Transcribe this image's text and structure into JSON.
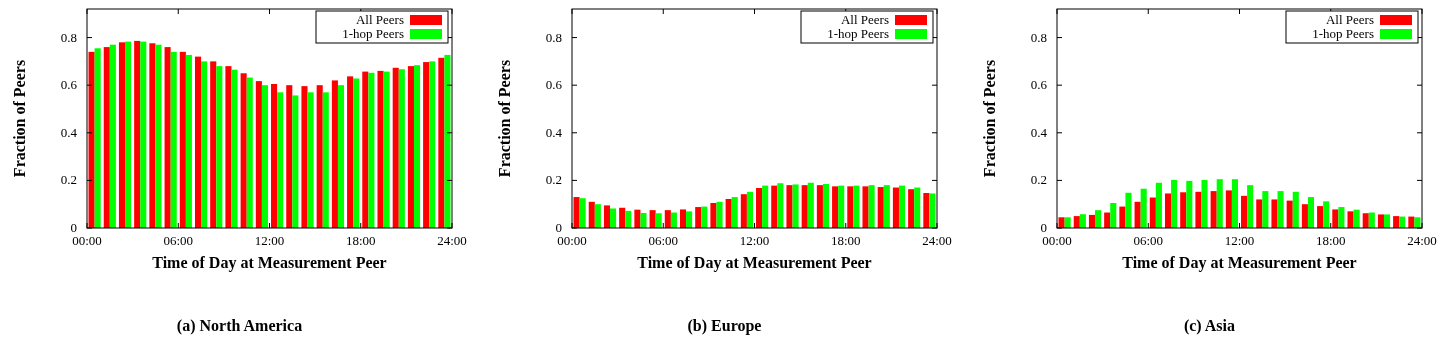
{
  "chart_data": [
    {
      "type": "bar",
      "title": "(a) North America",
      "xlabel": "Time of Day at Measurement Peer",
      "ylabel": "Fraction of Peers",
      "x": [
        0.5,
        1.5,
        2.5,
        3.5,
        4.5,
        5.5,
        6.5,
        7.5,
        8.5,
        9.5,
        10.5,
        11.5,
        12.5,
        13.5,
        14.5,
        15.5,
        16.5,
        17.5,
        18.5,
        19.5,
        20.5,
        21.5,
        22.5,
        23.5
      ],
      "xlim": [
        0,
        24
      ],
      "xticks": [
        {
          "value": 0,
          "label": "00:00"
        },
        {
          "value": 6,
          "label": "06:00"
        },
        {
          "value": 12,
          "label": "12:00"
        },
        {
          "value": 18,
          "label": "18:00"
        },
        {
          "value": 24,
          "label": "24:00"
        }
      ],
      "ylim": [
        0,
        0.92
      ],
      "yticks": [
        0,
        0.2,
        0.4,
        0.6,
        0.8
      ],
      "legend": "top right",
      "grid": false,
      "series": [
        {
          "name": "All Peers",
          "color": "#ff0000",
          "values": [
            0.74,
            0.76,
            0.78,
            0.786,
            0.776,
            0.76,
            0.74,
            0.72,
            0.7,
            0.68,
            0.65,
            0.617,
            0.605,
            0.6,
            0.596,
            0.6,
            0.62,
            0.637,
            0.657,
            0.66,
            0.673,
            0.68,
            0.697,
            0.715
          ]
        },
        {
          "name": "1-hop Peers",
          "color": "#00ff00",
          "values": [
            0.755,
            0.77,
            0.783,
            0.783,
            0.77,
            0.74,
            0.727,
            0.7,
            0.68,
            0.665,
            0.632,
            0.6,
            0.57,
            0.557,
            0.57,
            0.57,
            0.6,
            0.628,
            0.652,
            0.657,
            0.667,
            0.684,
            0.7,
            0.727
          ]
        }
      ]
    },
    {
      "type": "bar",
      "title": "(b) Europe",
      "xlabel": "Time of Day at Measurement Peer",
      "ylabel": "Fraction of Peers",
      "x": [
        0.5,
        1.5,
        2.5,
        3.5,
        4.5,
        5.5,
        6.5,
        7.5,
        8.5,
        9.5,
        10.5,
        11.5,
        12.5,
        13.5,
        14.5,
        15.5,
        16.5,
        17.5,
        18.5,
        19.5,
        20.5,
        21.5,
        22.5,
        23.5
      ],
      "xlim": [
        0,
        24
      ],
      "xticks": [
        {
          "value": 0,
          "label": "00:00"
        },
        {
          "value": 6,
          "label": "06:00"
        },
        {
          "value": 12,
          "label": "12:00"
        },
        {
          "value": 18,
          "label": "18:00"
        },
        {
          "value": 24,
          "label": "24:00"
        }
      ],
      "ylim": [
        0,
        0.92
      ],
      "yticks": [
        0,
        0.2,
        0.4,
        0.6,
        0.8
      ],
      "legend": "top right",
      "grid": false,
      "series": [
        {
          "name": "All Peers",
          "color": "#ff0000",
          "values": [
            0.13,
            0.11,
            0.095,
            0.085,
            0.077,
            0.075,
            0.075,
            0.078,
            0.088,
            0.105,
            0.122,
            0.142,
            0.168,
            0.178,
            0.18,
            0.18,
            0.18,
            0.175,
            0.175,
            0.175,
            0.172,
            0.17,
            0.163,
            0.147
          ]
        },
        {
          "name": "1-hop Peers",
          "color": "#00ff00",
          "values": [
            0.125,
            0.1,
            0.082,
            0.072,
            0.063,
            0.062,
            0.065,
            0.07,
            0.09,
            0.11,
            0.13,
            0.152,
            0.178,
            0.188,
            0.183,
            0.19,
            0.185,
            0.178,
            0.178,
            0.18,
            0.18,
            0.178,
            0.17,
            0.145
          ]
        }
      ]
    },
    {
      "type": "bar",
      "title": "(c) Asia",
      "xlabel": "Time of Day at Measurement Peer",
      "ylabel": "Fraction of Peers",
      "x": [
        0.5,
        1.5,
        2.5,
        3.5,
        4.5,
        5.5,
        6.5,
        7.5,
        8.5,
        9.5,
        10.5,
        11.5,
        12.5,
        13.5,
        14.5,
        15.5,
        16.5,
        17.5,
        18.5,
        19.5,
        20.5,
        21.5,
        22.5,
        23.5
      ],
      "xlim": [
        0,
        24
      ],
      "xticks": [
        {
          "value": 0,
          "label": "00:00"
        },
        {
          "value": 6,
          "label": "06:00"
        },
        {
          "value": 12,
          "label": "12:00"
        },
        {
          "value": 18,
          "label": "18:00"
        },
        {
          "value": 24,
          "label": "24:00"
        }
      ],
      "ylim": [
        0,
        0.92
      ],
      "yticks": [
        0,
        0.2,
        0.4,
        0.6,
        0.8
      ],
      "legend": "top right",
      "grid": false,
      "series": [
        {
          "name": "All Peers",
          "color": "#ff0000",
          "values": [
            0.045,
            0.05,
            0.055,
            0.065,
            0.09,
            0.11,
            0.128,
            0.145,
            0.15,
            0.152,
            0.155,
            0.158,
            0.135,
            0.12,
            0.12,
            0.115,
            0.1,
            0.092,
            0.078,
            0.07,
            0.062,
            0.057,
            0.05,
            0.048
          ]
        },
        {
          "name": "1-hop Peers",
          "color": "#00ff00",
          "values": [
            0.045,
            0.058,
            0.075,
            0.105,
            0.148,
            0.165,
            0.19,
            0.202,
            0.198,
            0.202,
            0.205,
            0.205,
            0.18,
            0.155,
            0.155,
            0.152,
            0.13,
            0.112,
            0.088,
            0.077,
            0.065,
            0.057,
            0.048,
            0.045
          ]
        }
      ]
    }
  ]
}
